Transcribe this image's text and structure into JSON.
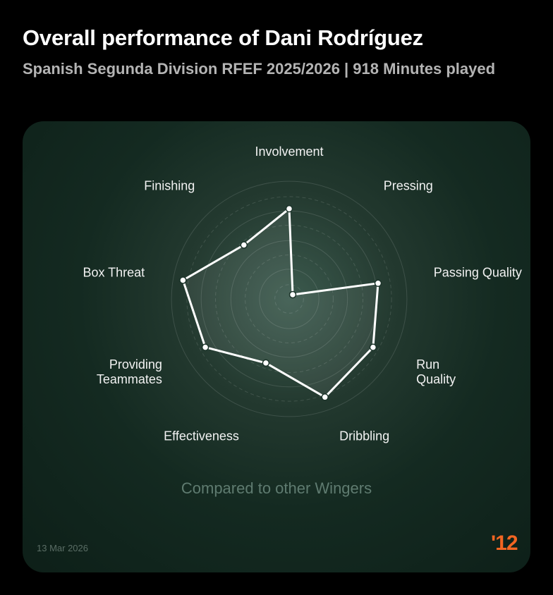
{
  "header": {
    "title": "Overall performance of Dani Rodríguez",
    "subtitle": "Spanish Segunda Division RFEF 2025/2026 | 918 Minutes played"
  },
  "footer": {
    "compare_note": "Compared to other Wingers",
    "date": "13 Mar 2026",
    "logo_text": "'12"
  },
  "colors": {
    "background": "#000000",
    "card": "#142a21",
    "line": "#ffffff",
    "brand": "#f26522"
  },
  "chart_data": {
    "type": "radar",
    "title": "Overall performance of Dani Rodríguez",
    "subtitle": "Spanish Segunda Division RFEF 2025/2026 | 918 Minutes played",
    "range": [
      0,
      100
    ],
    "grid": true,
    "categories": [
      "Involvement",
      "Pressing",
      "Passing Quality",
      "Run Quality",
      "Dribbling",
      "Effectiveness",
      "Providing Teammates",
      "Box Threat",
      "Finishing"
    ],
    "values": [
      82,
      5,
      82,
      88,
      95,
      62,
      88,
      98,
      64
    ]
  }
}
